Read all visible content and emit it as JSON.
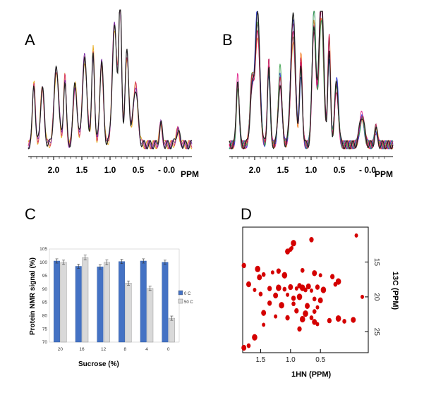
{
  "panels": {
    "a": "A",
    "b": "B",
    "c": "C",
    "d": "D"
  },
  "spectrum_axis": {
    "ticks": [
      "2.0",
      "1.5",
      "1.0",
      "0.5",
      "- 0.0"
    ],
    "unit": "PPM"
  },
  "colors": {
    "bar_0c": "#4472c4",
    "bar_50c": "#d9d9d9",
    "peaks": "#d40000",
    "spectrum_base": "#222222",
    "spectrum_overlays_a": [
      "#e6a817",
      "#d6336c",
      "#7a2aa3"
    ],
    "spectrum_overlays_b": [
      "#f47b20",
      "#e0218a",
      "#2e3bd9",
      "#3aa14a",
      "#c2185b"
    ]
  },
  "chart_data": [
    {
      "id": "A",
      "type": "line",
      "xlabel": "PPM",
      "x_ticks": [
        2.0,
        1.5,
        1.0,
        0.5,
        0.0
      ],
      "x_tick_labels": [
        "2.0",
        "1.5",
        "1.0",
        "0.5",
        "- 0.0"
      ],
      "xlim": [
        2.45,
        -0.45
      ],
      "x_reversed": true,
      "y_axis_visible": false,
      "series_count": 4,
      "peaks": [
        {
          "x": 2.35,
          "y": 0.45
        },
        {
          "x": 2.2,
          "y": 0.4
        },
        {
          "x": 1.95,
          "y": 0.55
        },
        {
          "x": 1.8,
          "y": 0.48
        },
        {
          "x": 1.62,
          "y": 0.44
        },
        {
          "x": 1.45,
          "y": 0.62
        },
        {
          "x": 1.3,
          "y": 0.68
        },
        {
          "x": 1.15,
          "y": 0.58
        },
        {
          "x": 0.92,
          "y": 0.86
        },
        {
          "x": 0.82,
          "y": 1.0
        },
        {
          "x": 0.7,
          "y": 0.66
        },
        {
          "x": 0.55,
          "y": 0.42
        },
        {
          "x": 0.1,
          "y": 0.15
        },
        {
          "x": -0.2,
          "y": 0.1
        }
      ]
    },
    {
      "id": "B",
      "type": "line",
      "xlabel": "PPM",
      "x_ticks": [
        2.0,
        1.5,
        1.0,
        0.5,
        0.0
      ],
      "x_tick_labels": [
        "2.0",
        "1.5",
        "1.0",
        "0.5",
        "- 0.0"
      ],
      "xlim": [
        2.45,
        -0.45
      ],
      "x_reversed": true,
      "y_axis_visible": false,
      "series_count": 6,
      "peaks": [
        {
          "x": 2.3,
          "y": 0.45
        },
        {
          "x": 2.05,
          "y": 0.42
        },
        {
          "x": 1.95,
          "y": 0.9
        },
        {
          "x": 1.75,
          "y": 0.55
        },
        {
          "x": 1.55,
          "y": 0.5
        },
        {
          "x": 1.32,
          "y": 0.85
        },
        {
          "x": 1.18,
          "y": 0.58
        },
        {
          "x": 0.95,
          "y": 0.93
        },
        {
          "x": 0.82,
          "y": 1.0
        },
        {
          "x": 0.68,
          "y": 0.72
        },
        {
          "x": 0.55,
          "y": 0.45
        },
        {
          "x": 0.1,
          "y": 0.2
        },
        {
          "x": -0.15,
          "y": 0.12
        }
      ]
    },
    {
      "id": "C",
      "type": "bar",
      "xlabel": "Sucrose (%)",
      "ylabel": "Protein NMR signal (%)",
      "ylim": [
        70,
        105
      ],
      "y_ticks": [
        70,
        75,
        80,
        85,
        90,
        95,
        100,
        105
      ],
      "grid": false,
      "legend_position": "right",
      "categories": [
        "20",
        "16",
        "12",
        "8",
        "4",
        "0"
      ],
      "series": [
        {
          "name": "0 C",
          "values": [
            100.5,
            98.5,
            98.3,
            100.3,
            100.5,
            100.0
          ],
          "errors": [
            0.8,
            0.8,
            0.8,
            0.8,
            0.8,
            0.8
          ]
        },
        {
          "name": "50 C",
          "values": [
            100.0,
            101.8,
            100.0,
            92.2,
            90.2,
            79.0
          ],
          "errors": [
            0.8,
            0.9,
            0.9,
            0.8,
            0.8,
            0.8
          ]
        }
      ]
    },
    {
      "id": "D",
      "type": "scatter",
      "xlabel": "1HN (PPM)",
      "ylabel": "13C (PPM)",
      "xlim": [
        1.8,
        -0.3
      ],
      "ylim": [
        10,
        28
      ],
      "x_reversed": true,
      "y_reversed": true,
      "x_ticks": [
        1.5,
        1.0,
        0.5
      ],
      "x_tick_labels": [
        "1.5",
        "1.0",
        "0.5"
      ],
      "y_ticks": [
        15,
        20,
        25
      ],
      "y_axis_side": "right",
      "points": [
        {
          "x": -0.1,
          "y": 11.2
        },
        {
          "x": 0.65,
          "y": 11.8
        },
        {
          "x": 0.95,
          "y": 12.3
        },
        {
          "x": 1.0,
          "y": 13.2
        },
        {
          "x": 1.05,
          "y": 13.5
        },
        {
          "x": 0.98,
          "y": 13.0
        },
        {
          "x": 1.78,
          "y": 15.5
        },
        {
          "x": 1.55,
          "y": 16.0
        },
        {
          "x": 1.45,
          "y": 16.8
        },
        {
          "x": 1.52,
          "y": 17.2
        },
        {
          "x": 1.3,
          "y": 16.5
        },
        {
          "x": 1.2,
          "y": 16.3
        },
        {
          "x": 1.1,
          "y": 16.9
        },
        {
          "x": 0.8,
          "y": 16.2
        },
        {
          "x": 0.6,
          "y": 16.6
        },
        {
          "x": 0.5,
          "y": 16.9
        },
        {
          "x": 0.3,
          "y": 17.1
        },
        {
          "x": 0.2,
          "y": 17.8
        },
        {
          "x": 0.25,
          "y": 18.2
        },
        {
          "x": 1.7,
          "y": 18.2
        },
        {
          "x": 1.6,
          "y": 19.0
        },
        {
          "x": 1.35,
          "y": 18.8
        },
        {
          "x": 1.2,
          "y": 18.7
        },
        {
          "x": 1.1,
          "y": 18.9
        },
        {
          "x": 1.0,
          "y": 18.6
        },
        {
          "x": 0.9,
          "y": 18.8
        },
        {
          "x": 0.85,
          "y": 18.4
        },
        {
          "x": 0.8,
          "y": 18.7
        },
        {
          "x": 0.75,
          "y": 19.0
        },
        {
          "x": 0.7,
          "y": 18.5
        },
        {
          "x": 0.65,
          "y": 19.1
        },
        {
          "x": 0.55,
          "y": 18.6
        },
        {
          "x": 0.45,
          "y": 19.0
        },
        {
          "x": 1.5,
          "y": 19.6
        },
        {
          "x": 1.25,
          "y": 19.8
        },
        {
          "x": 1.05,
          "y": 19.7
        },
        {
          "x": 0.95,
          "y": 20.2
        },
        {
          "x": 0.85,
          "y": 20.0
        },
        {
          "x": 0.6,
          "y": 20.3
        },
        {
          "x": 0.5,
          "y": 20.5
        },
        {
          "x": -0.2,
          "y": 20.0
        },
        {
          "x": 1.35,
          "y": 20.9
        },
        {
          "x": 1.15,
          "y": 21.2
        },
        {
          "x": 0.95,
          "y": 21.0
        },
        {
          "x": 0.72,
          "y": 21.3
        },
        {
          "x": 0.55,
          "y": 21.5
        },
        {
          "x": 0.9,
          "y": 22.0
        },
        {
          "x": 0.75,
          "y": 22.4
        },
        {
          "x": 0.6,
          "y": 22.1
        },
        {
          "x": 1.45,
          "y": 22.3
        },
        {
          "x": 1.25,
          "y": 22.8
        },
        {
          "x": 1.05,
          "y": 23.0
        },
        {
          "x": 0.8,
          "y": 23.2
        },
        {
          "x": 0.65,
          "y": 23.0
        },
        {
          "x": 0.6,
          "y": 23.6
        },
        {
          "x": 0.55,
          "y": 23.9
        },
        {
          "x": 0.35,
          "y": 23.4
        },
        {
          "x": 0.2,
          "y": 23.1
        },
        {
          "x": 0.1,
          "y": 23.5
        },
        {
          "x": -0.05,
          "y": 23.3
        },
        {
          "x": 1.45,
          "y": 24.0
        },
        {
          "x": 0.85,
          "y": 24.6
        },
        {
          "x": 1.6,
          "y": 25.8
        },
        {
          "x": 1.7,
          "y": 27.0
        },
        {
          "x": 1.78,
          "y": 27.3
        }
      ]
    }
  ]
}
